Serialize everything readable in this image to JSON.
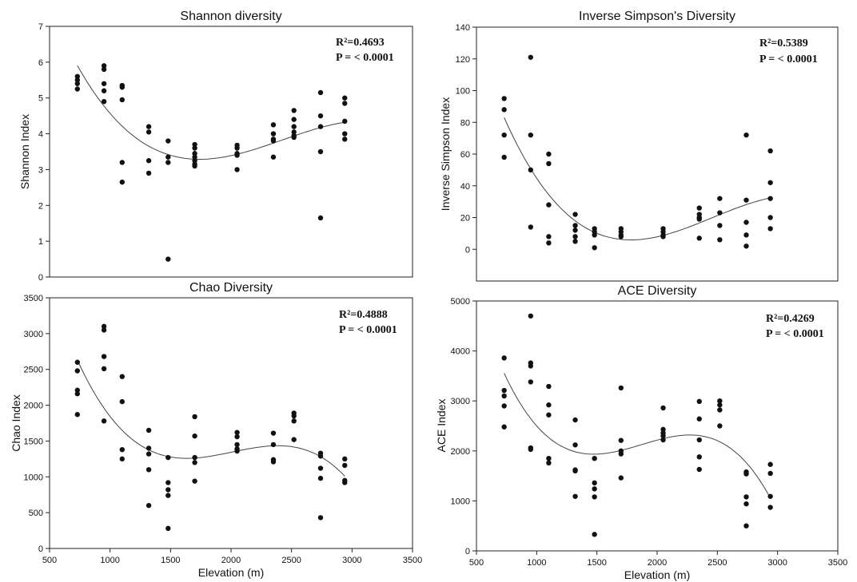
{
  "chart_data": [
    {
      "type": "scatter",
      "title": "Shannon diversity",
      "xlabel": "",
      "ylabel": "Shannon Index",
      "xlim": [
        500,
        3500
      ],
      "ylim": [
        0,
        7
      ],
      "xticks": [],
      "yticks": [
        0,
        1,
        2,
        3,
        4,
        5,
        6,
        7
      ],
      "r2": "R²=0.4693",
      "p": "P = < 0.0001",
      "fit": "cubic",
      "x": [
        730,
        730,
        730,
        730,
        950,
        950,
        950,
        950,
        950,
        1100,
        1100,
        1100,
        1100,
        1100,
        1320,
        1320,
        1320,
        1320,
        1480,
        1480,
        1480,
        1480,
        1700,
        1700,
        1700,
        1700,
        1700,
        1700,
        1700,
        2050,
        2050,
        2050,
        2050,
        2050,
        2350,
        2350,
        2350,
        2350,
        2350,
        2520,
        2520,
        2520,
        2520,
        2520,
        2520,
        2740,
        2740,
        2740,
        2740,
        2740,
        2940,
        2940,
        2940,
        2940,
        2940
      ],
      "y": [
        5.6,
        5.5,
        5.4,
        5.25,
        5.9,
        5.8,
        5.4,
        5.2,
        4.9,
        5.35,
        5.3,
        4.95,
        3.2,
        2.65,
        4.2,
        4.05,
        3.25,
        2.9,
        3.8,
        3.35,
        3.2,
        0.5,
        3.7,
        3.6,
        3.45,
        3.35,
        3.25,
        3.15,
        3.1,
        3.68,
        3.6,
        3.45,
        3.4,
        3.0,
        4.25,
        4.0,
        3.85,
        3.8,
        3.35,
        4.65,
        4.4,
        4.2,
        4.05,
        3.95,
        3.9,
        5.15,
        4.5,
        4.2,
        3.5,
        1.65,
        5.0,
        4.85,
        4.35,
        4.0,
        3.85
      ]
    },
    {
      "type": "scatter",
      "title": "Inverse Simpson's Diversity",
      "xlabel": "",
      "ylabel": "Inverse Simpson Index",
      "xlim": [
        500,
        3500
      ],
      "ylim": [
        -20,
        140
      ],
      "xticks": [],
      "yticks": [
        0,
        20,
        40,
        60,
        80,
        100,
        120,
        140
      ],
      "r2": "R²=0.5389",
      "p": "P = < 0.0001",
      "fit": "cubic",
      "x": [
        730,
        730,
        730,
        730,
        950,
        950,
        950,
        950,
        1100,
        1100,
        1100,
        1100,
        1100,
        1320,
        1320,
        1320,
        1320,
        1320,
        1480,
        1480,
        1480,
        1480,
        1700,
        1700,
        1700,
        1700,
        2050,
        2050,
        2050,
        2050,
        2350,
        2350,
        2350,
        2350,
        2350,
        2520,
        2520,
        2520,
        2520,
        2740,
        2740,
        2740,
        2740,
        2740,
        2940,
        2940,
        2940,
        2940,
        2940
      ],
      "y": [
        95,
        88,
        72,
        58,
        121,
        72,
        50,
        14,
        60,
        54,
        28,
        8,
        4,
        22,
        15,
        12,
        8,
        5,
        13,
        11,
        9,
        1,
        13,
        11,
        9,
        8,
        13,
        11,
        9,
        8,
        26,
        22,
        20,
        19,
        7,
        32,
        23,
        15,
        6,
        72,
        31,
        17,
        9,
        2,
        62,
        42,
        32,
        20,
        13
      ]
    },
    {
      "type": "scatter",
      "title": "Chao Diversity",
      "xlabel": "Elevation (m)",
      "ylabel": "Chao Index",
      "xlim": [
        500,
        3500
      ],
      "ylim": [
        0,
        3500
      ],
      "xticks": [
        500,
        1000,
        1500,
        2000,
        2500,
        3000,
        3500
      ],
      "yticks": [
        0,
        500,
        1000,
        1500,
        2000,
        2500,
        3000,
        3500
      ],
      "r2": "R²=0.4888",
      "p": "P = < 0.0001",
      "fit": "cubic",
      "x": [
        730,
        730,
        730,
        730,
        730,
        950,
        950,
        950,
        950,
        950,
        1100,
        1100,
        1100,
        1100,
        1320,
        1320,
        1320,
        1320,
        1320,
        1480,
        1480,
        1480,
        1480,
        1480,
        1700,
        1700,
        1700,
        1700,
        1700,
        2050,
        2050,
        2050,
        2050,
        2050,
        2350,
        2350,
        2350,
        2350,
        2520,
        2520,
        2520,
        2520,
        2740,
        2740,
        2740,
        2740,
        2740,
        2940,
        2940,
        2940,
        2940
      ],
      "y": [
        2600,
        2480,
        2210,
        2160,
        1870,
        3100,
        3050,
        2680,
        2510,
        1780,
        2400,
        2050,
        1380,
        1250,
        1650,
        1400,
        1320,
        1100,
        600,
        1270,
        920,
        820,
        740,
        280,
        1840,
        1570,
        1270,
        1200,
        940,
        1620,
        1560,
        1450,
        1390,
        1360,
        1610,
        1450,
        1240,
        1210,
        1890,
        1850,
        1780,
        1520,
        1330,
        1290,
        1120,
        980,
        430,
        1250,
        1160,
        950,
        920
      ]
    },
    {
      "type": "scatter",
      "title": "ACE Diversity",
      "xlabel": "Elevation (m)",
      "ylabel": "ACE Index",
      "xlim": [
        500,
        3500
      ],
      "ylim": [
        0,
        5000
      ],
      "xticks": [
        500,
        1000,
        1500,
        2000,
        2500,
        3000,
        3500
      ],
      "yticks": [
        0,
        1000,
        2000,
        3000,
        4000,
        5000
      ],
      "r2": "R²=0.4269",
      "p": "P = < 0.0001",
      "fit": "cubic",
      "x": [
        730,
        730,
        730,
        730,
        730,
        950,
        950,
        950,
        950,
        950,
        950,
        1100,
        1100,
        1100,
        1100,
        1100,
        1320,
        1320,
        1320,
        1320,
        1320,
        1480,
        1480,
        1480,
        1480,
        1480,
        1700,
        1700,
        1700,
        1700,
        1700,
        2050,
        2050,
        2050,
        2050,
        2050,
        2350,
        2350,
        2350,
        2350,
        2350,
        2520,
        2520,
        2520,
        2520,
        2740,
        2740,
        2740,
        2740,
        2740,
        2940,
        2940,
        2940,
        2940
      ],
      "y": [
        3860,
        3210,
        3100,
        2900,
        2480,
        4700,
        3760,
        3700,
        3380,
        2060,
        2030,
        3290,
        2920,
        2720,
        1850,
        1760,
        2620,
        2120,
        1620,
        1600,
        1090,
        1850,
        1360,
        1240,
        1080,
        330,
        3260,
        2210,
        2000,
        1940,
        1460,
        2860,
        2430,
        2360,
        2300,
        2220,
        2990,
        2640,
        2220,
        1880,
        1630,
        3000,
        2920,
        2820,
        2500,
        1580,
        1540,
        1080,
        940,
        500,
        1730,
        1550,
        1090,
        870
      ]
    }
  ]
}
